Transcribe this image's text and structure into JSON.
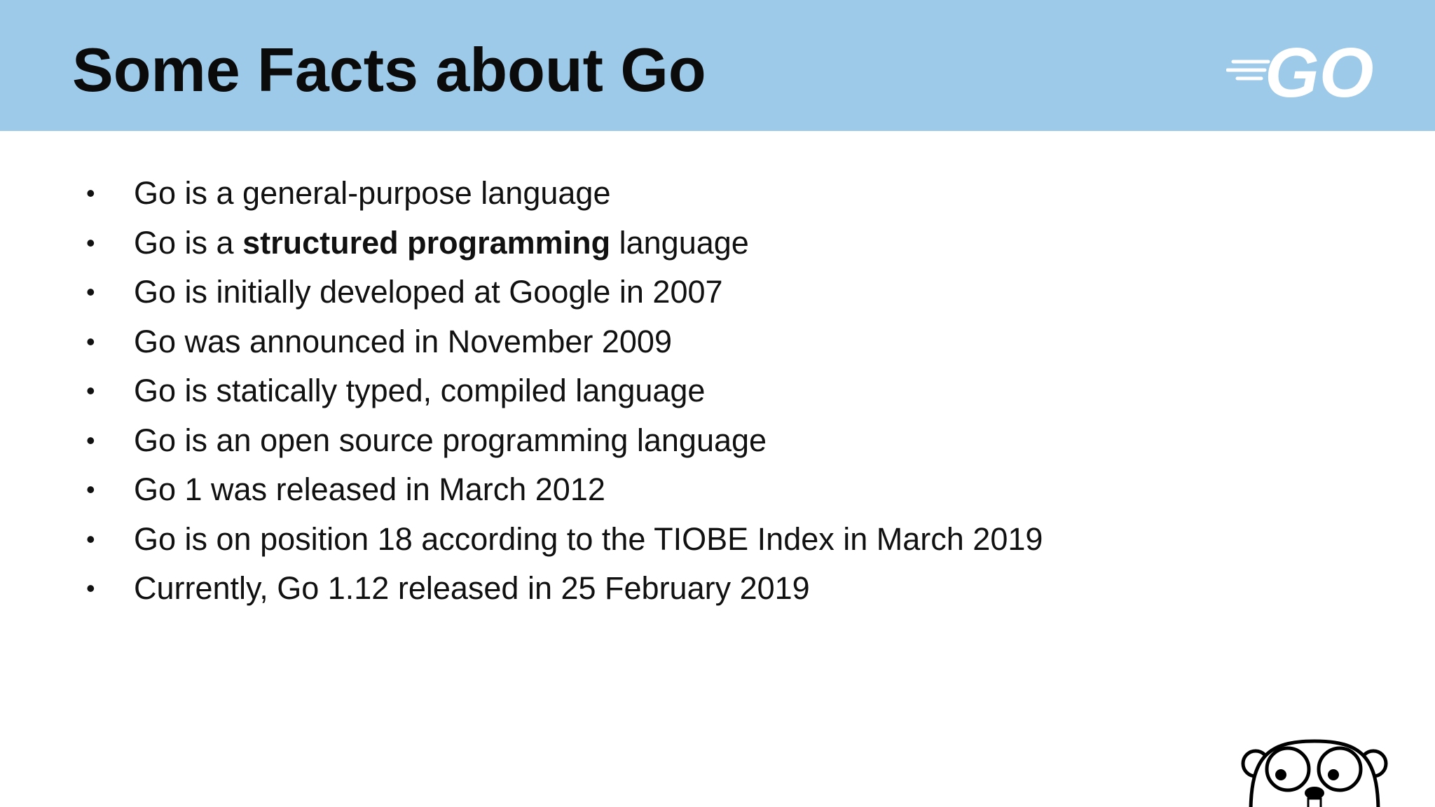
{
  "header": {
    "title": "Some Facts about Go",
    "logo": "GO"
  },
  "items": [
    [
      {
        "text": "Go is a general-purpose language"
      }
    ],
    [
      {
        "text": "Go is a "
      },
      {
        "text": "structured programming",
        "bold": true
      },
      {
        "text": " language"
      }
    ],
    [
      {
        "text": "Go is initially developed at Google in 2007"
      }
    ],
    [
      {
        "text": "Go was announced in November 2009"
      }
    ],
    [
      {
        "text": "Go is statically typed, compiled language"
      }
    ],
    [
      {
        "text": "Go is an open source programming language"
      }
    ],
    [
      {
        "text": "Go 1 was released in March 2012"
      }
    ],
    [
      {
        "text": "Go is on position 18 according to the TIOBE Index in March 2019"
      }
    ],
    [
      {
        "text": "Currently, Go 1.12 released in 25 February 2019"
      }
    ]
  ]
}
